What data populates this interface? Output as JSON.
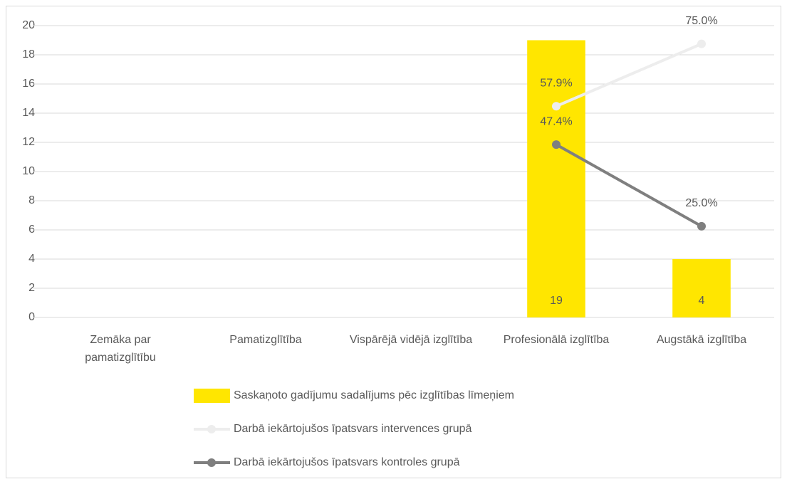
{
  "chart_data": {
    "type": "bar-line",
    "categories": [
      "Zemāka par pamatizglītību",
      "Pamatizglītība",
      "Vispārējā vidējā izglītība",
      "Profesionālā izglītība",
      "Augstākā izglītība"
    ],
    "series": [
      {
        "name": "Saskaņoto gadījumu sadalījums pēc izglītības līmeņiem",
        "type": "bar",
        "color": "#FFE600",
        "values": [
          null,
          null,
          null,
          19,
          4
        ]
      },
      {
        "name": "Darbā iekārtojušos īpatsvars intervences grupā",
        "type": "line",
        "axis": "y2",
        "color": "#EDEDED",
        "values": [
          null,
          null,
          null,
          57.9,
          75.0
        ],
        "value_labels": [
          null,
          null,
          null,
          "57.9%",
          "75.0%"
        ]
      },
      {
        "name": "Darbā iekārtojušos īpatsvars kontroles grupā",
        "type": "line",
        "axis": "y2",
        "color": "#7F7F7F",
        "values": [
          null,
          null,
          null,
          47.4,
          25.0
        ],
        "value_labels": [
          null,
          null,
          null,
          "47.4%",
          "25.0%"
        ]
      }
    ],
    "ylim": [
      0,
      20
    ],
    "yticks": [
      0,
      2,
      4,
      6,
      8,
      10,
      12,
      14,
      16,
      18,
      20
    ],
    "y2lim": [
      0,
      80
    ],
    "grid": true,
    "legend": "bottom"
  }
}
